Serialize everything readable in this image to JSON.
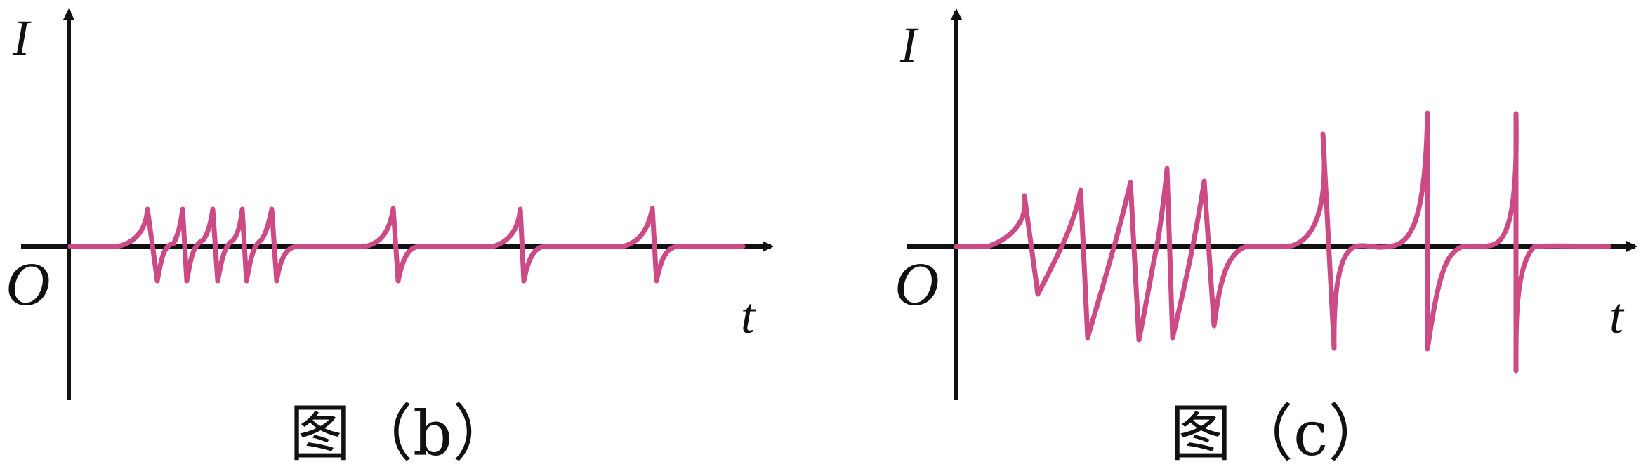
{
  "colors": {
    "axis": "#111111",
    "waveform": "#cc4a86",
    "background": "#ffffff"
  },
  "panels": [
    {
      "id": "b",
      "y_label": "I",
      "x_label": "t",
      "origin_label": "O",
      "caption": "图（b）"
    },
    {
      "id": "c",
      "y_label": "I",
      "x_label": "t",
      "origin_label": "O",
      "caption": "图（c）"
    }
  ]
}
